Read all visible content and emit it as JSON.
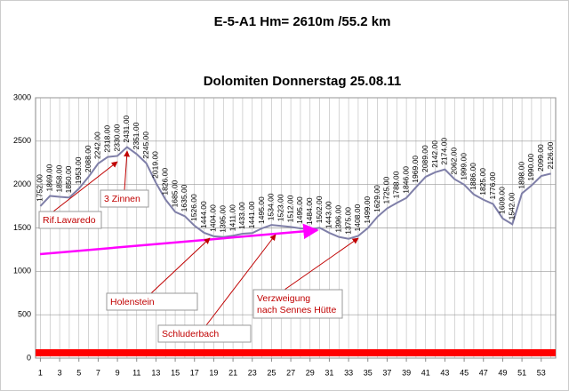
{
  "chart_data": {
    "type": "line",
    "title": "E-5-A1 Hm= 2610m   /55.2 km",
    "subtitle": "Dolomiten   Donnerstag 25.08.11",
    "x": [
      1,
      2,
      3,
      4,
      5,
      6,
      7,
      8,
      9,
      10,
      11,
      12,
      13,
      14,
      15,
      16,
      17,
      18,
      19,
      20,
      21,
      22,
      23,
      24,
      25,
      26,
      27,
      28,
      29,
      30,
      31,
      32,
      33,
      34,
      35,
      36,
      37,
      38,
      39,
      40,
      41,
      42,
      43,
      44,
      45,
      46,
      47,
      48,
      49,
      50,
      51,
      52,
      53,
      54
    ],
    "xlim": [
      0.5,
      54.5
    ],
    "xticks": [
      1,
      3,
      5,
      7,
      9,
      11,
      13,
      15,
      17,
      19,
      21,
      23,
      25,
      27,
      29,
      31,
      33,
      35,
      37,
      39,
      41,
      43,
      45,
      47,
      49,
      51,
      53
    ],
    "ylim": [
      0,
      3000
    ],
    "yticks": [
      0,
      500,
      1000,
      1500,
      2000,
      2500,
      3000
    ],
    "grid": true,
    "series": [
      {
        "color": "#7f7fa8",
        "values": [
          1752,
          1869,
          1858,
          1850,
          1953,
          2088,
          2242,
          2318,
          2330,
          2431,
          2351,
          2245,
          2019,
          1826,
          1685,
          1635,
          1526,
          1444,
          1404,
          1395,
          1411,
          1433,
          1441,
          1495,
          1534,
          1523,
          1512,
          1495,
          1484,
          1502,
          1443,
          1396,
          1375,
          1408,
          1499,
          1629,
          1725,
          1788,
          1846,
          1969,
          2089,
          2142,
          2174,
          2062,
          1999,
          1886,
          1825,
          1776,
          1609,
          1542,
          1898,
          1990,
          2099,
          2126
        ],
        "value_labels": [
          "1752.00",
          "1869.00",
          "1858.00",
          "1850.00",
          "1953.00",
          "2088.00",
          "2242.00",
          "2318.00",
          "2330.00",
          "2431.00",
          "2351.00",
          "2245.00",
          "2019.00",
          "1826.00",
          "1685.00",
          "1635.00",
          "1526.00",
          "1444.00",
          "1404.00",
          "1395.00",
          "1411.00",
          "1433.00",
          "1441.00",
          "1495.00",
          "1534.00",
          "1523.00",
          "1512.00",
          "1495.00",
          "1484.00",
          "1502.00",
          "1443.00",
          "1396.00",
          "1375.00",
          "1408.00",
          "1499.00",
          "1629.00",
          "1725.00",
          "1788.00",
          "1846.00",
          "1969.00",
          "2089.00",
          "2142.00",
          "2174.00",
          "2062.00",
          "1999.00",
          "1886.00",
          "1825.00",
          "1776.00",
          "1609.00",
          "1542.00",
          "1898.00",
          "1990.00",
          "2099.00",
          "2126.00"
        ]
      }
    ],
    "annotations": [
      [
        "Rif.Lavaredo"
      ],
      [
        "3 Zinnen"
      ],
      [
        "Holenstein"
      ],
      [
        "Schluderbach"
      ],
      [
        "Verzweigung",
        "nach Sennes Hütte"
      ]
    ]
  }
}
